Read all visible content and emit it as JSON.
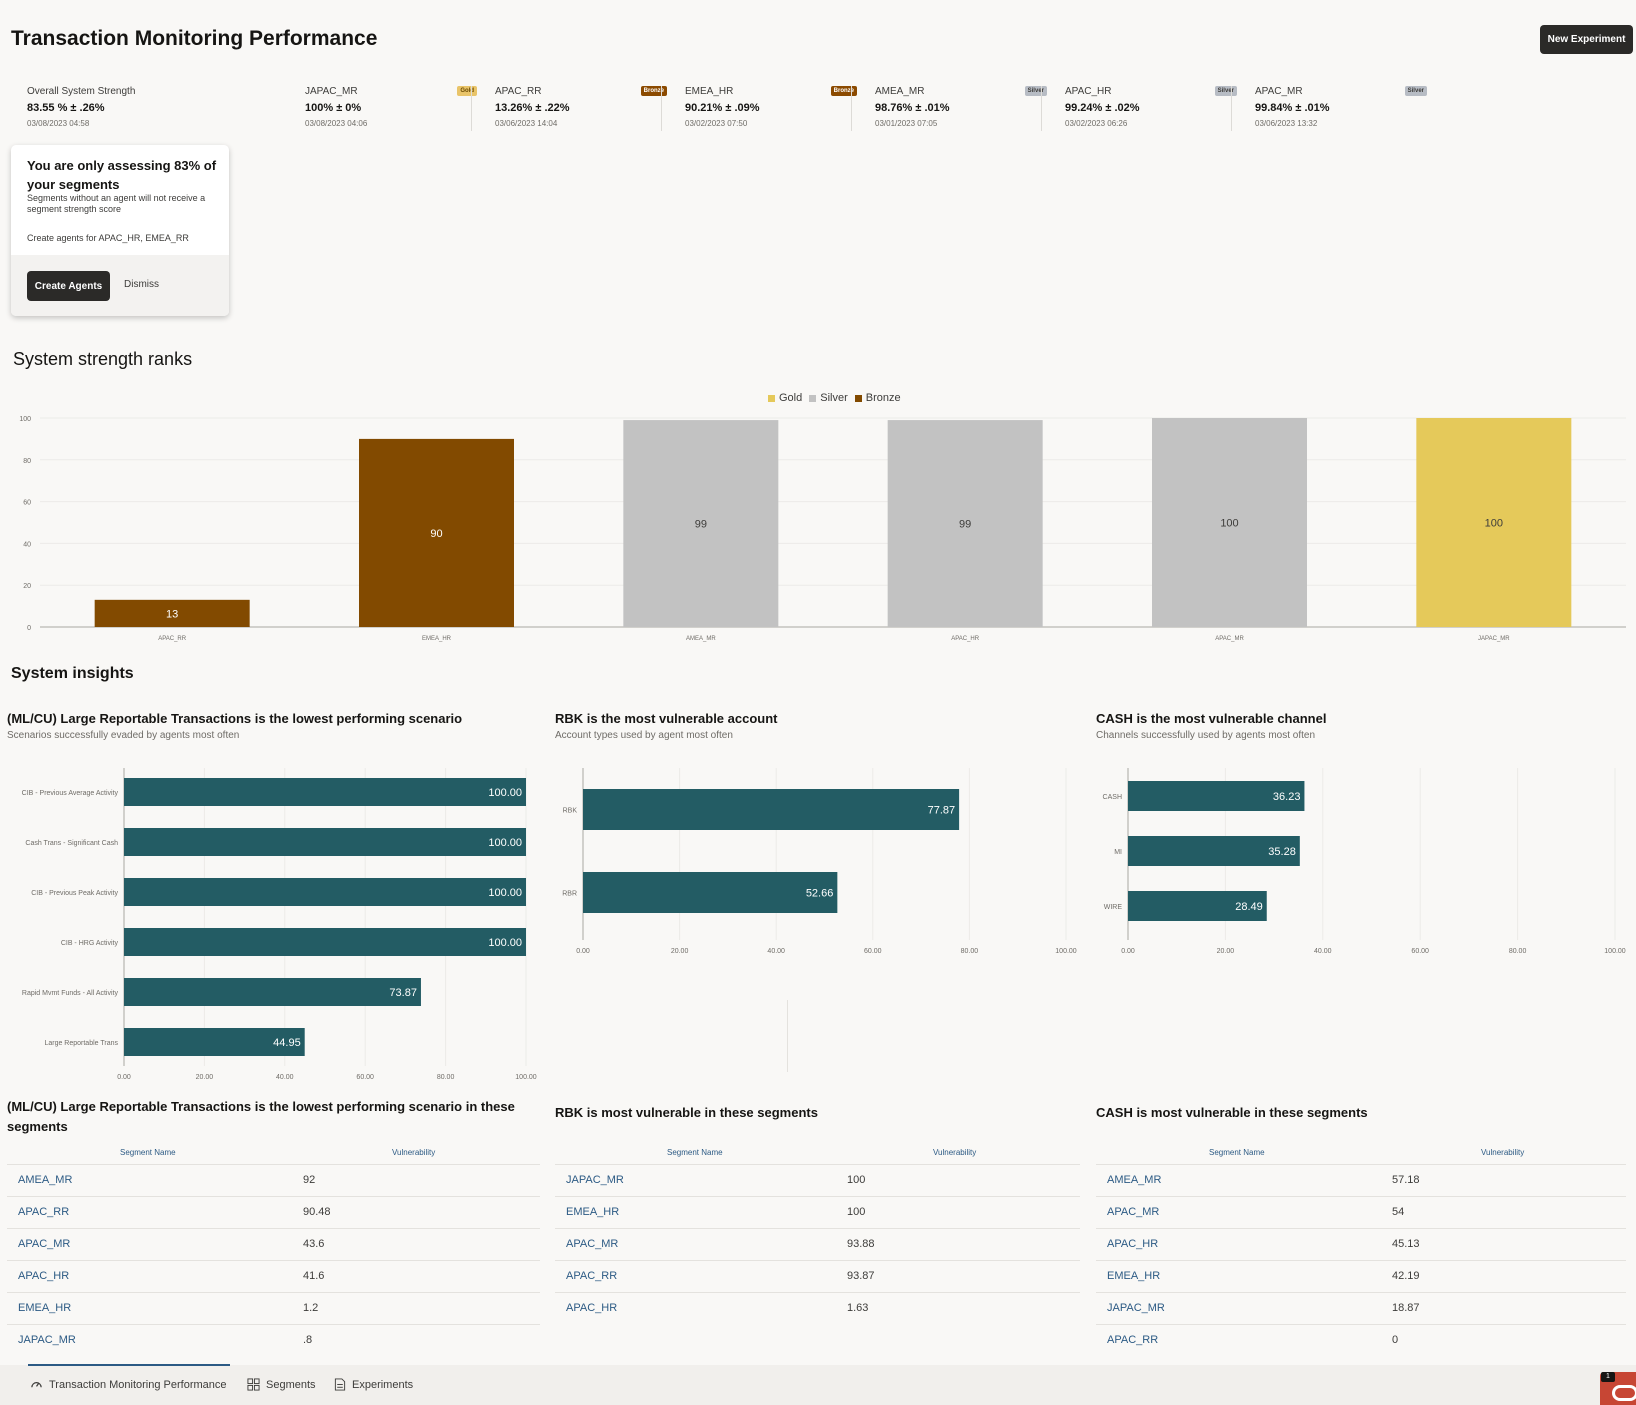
{
  "header": {
    "title": "Transaction Monitoring Performance",
    "new_experiment": "New Experiment"
  },
  "metrics": [
    {
      "name": "Overall System Strength",
      "value": "83.55 % ± .26%",
      "date": "03/08/2023 04:58",
      "badge": ""
    },
    {
      "name": "JAPAC_MR",
      "value": "100% ± 0%",
      "date": "03/08/2023 04:06",
      "badge": "Gold",
      "tier": "gold"
    },
    {
      "name": "APAC_RR",
      "value": "13.26% ± .22%",
      "date": "03/06/2023 14:04",
      "badge": "Bronze",
      "tier": "bronze"
    },
    {
      "name": "EMEA_HR",
      "value": "90.21% ± .09%",
      "date": "03/02/2023 07:50",
      "badge": "Bronze",
      "tier": "bronze"
    },
    {
      "name": "AMEA_MR",
      "value": "98.76% ± .01%",
      "date": "03/01/2023 07:05",
      "badge": "Silver",
      "tier": "silver"
    },
    {
      "name": "APAC_HR",
      "value": "99.24% ± .02%",
      "date": "03/02/2023 06:26",
      "badge": "Silver",
      "tier": "silver"
    },
    {
      "name": "APAC_MR",
      "value": "99.84% ± .01%",
      "date": "03/06/2023 13:32",
      "badge": "Silver",
      "tier": "silver"
    }
  ],
  "notice": {
    "title": "You are only assessing 83% of your segments",
    "description": "Segments without an agent will not receive a segment strength score",
    "cta_text": "Create agents for APAC_HR, EMEA_RR",
    "create_button": "Create Agents",
    "dismiss_button": "Dismiss"
  },
  "ranks": {
    "title": "System strength ranks",
    "legend": [
      {
        "label": "Gold",
        "color": "#e5c95a"
      },
      {
        "label": "Silver",
        "color": "#c2c2c2"
      },
      {
        "label": "Bronze",
        "color": "#824a00"
      }
    ],
    "y_ticks": [
      "100",
      "80",
      "60",
      "40",
      "20",
      "0"
    ]
  },
  "insights": {
    "title": "System insights",
    "panels": [
      {
        "title": "(ML/CU) Large Reportable Transactions is the lowest performing scenario",
        "subtitle": "Scenarios successfully evaded by agents most often"
      },
      {
        "title": "RBK is the most vulnerable account",
        "subtitle": "Account types used by agent most often"
      },
      {
        "title": "CASH is the most vulnerable channel",
        "subtitle": "Channels successfully used by agents most often"
      }
    ]
  },
  "chart_data": [
    {
      "type": "bar",
      "title": "System strength ranks",
      "categories": [
        "APAC_RR",
        "EMEA_HR",
        "AMEA_MR",
        "APAC_HR",
        "APAC_MR",
        "JAPAC_MR"
      ],
      "values": [
        13,
        90,
        99,
        99,
        100,
        100
      ],
      "tiers": [
        "Bronze",
        "Bronze",
        "Silver",
        "Silver",
        "Silver",
        "Gold"
      ],
      "ylim": [
        0,
        100
      ],
      "legend": [
        "Gold",
        "Silver",
        "Bronze"
      ]
    },
    {
      "type": "bar",
      "orientation": "horizontal",
      "title": "(ML/CU) Large Reportable Transactions is the lowest performing scenario",
      "categories": [
        "CIB - Previous Average Activity",
        "Cash Trans - Significant Cash",
        "CIB - Previous Peak Activity",
        "CIB - HRG Activity",
        "Rapid Mvmt Funds - All Activity",
        "Large Reportable Trans"
      ],
      "values": [
        100.0,
        100.0,
        100.0,
        100.0,
        73.87,
        44.95
      ],
      "labels": [
        "100.00",
        "100.00",
        "100.00",
        "100.00",
        "73.87",
        "44.95"
      ],
      "xticks": [
        "0.00",
        "20.00",
        "40.00",
        "60.00",
        "80.00",
        "100.00"
      ],
      "xlim": [
        0,
        100
      ]
    },
    {
      "type": "bar",
      "orientation": "horizontal",
      "title": "RBK is the most vulnerable account",
      "categories": [
        "RBK",
        "RBR"
      ],
      "values": [
        77.87,
        52.66
      ],
      "labels": [
        "77.87",
        "52.66"
      ],
      "xticks": [
        "0.00",
        "20.00",
        "40.00",
        "60.00",
        "80.00",
        "100.00"
      ],
      "xlim": [
        0,
        100
      ]
    },
    {
      "type": "bar",
      "orientation": "horizontal",
      "title": "CASH is the most vulnerable channel",
      "categories": [
        "CASH",
        "MI",
        "WIRE"
      ],
      "values": [
        36.23,
        35.28,
        28.49
      ],
      "labels": [
        "36.23",
        "35.28",
        "28.49"
      ],
      "xticks": [
        "0.00",
        "20.00",
        "40.00",
        "60.00",
        "80.00",
        "100.00"
      ],
      "xlim": [
        0,
        100
      ]
    }
  ],
  "tables": [
    {
      "title": "(ML/CU) Large Reportable Transactions is the lowest performing scenario in these segments",
      "headers": [
        "Segment Name",
        "Vulnerability"
      ],
      "rows": [
        [
          "AMEA_MR",
          "92"
        ],
        [
          "APAC_RR",
          "90.48"
        ],
        [
          "APAC_MR",
          "43.6"
        ],
        [
          "APAC_HR",
          "41.6"
        ],
        [
          "EMEA_HR",
          "1.2"
        ],
        [
          "JAPAC_MR",
          ".8"
        ]
      ]
    },
    {
      "title": "RBK is most vulnerable in these segments",
      "headers": [
        "Segment Name",
        "Vulnerability"
      ],
      "rows": [
        [
          "JAPAC_MR",
          "100"
        ],
        [
          "EMEA_HR",
          "100"
        ],
        [
          "APAC_MR",
          "93.88"
        ],
        [
          "APAC_RR",
          "93.87"
        ],
        [
          "APAC_HR",
          "1.63"
        ]
      ]
    },
    {
      "title": "CASH is most vulnerable in these segments",
      "headers": [
        "Segment Name",
        "Vulnerability"
      ],
      "rows": [
        [
          "AMEA_MR",
          "57.18"
        ],
        [
          "APAC_MR",
          "54"
        ],
        [
          "APAC_HR",
          "45.13"
        ],
        [
          "EMEA_HR",
          "42.19"
        ],
        [
          "JAPAC_MR",
          "18.87"
        ],
        [
          "APAC_RR",
          "0"
        ]
      ]
    }
  ],
  "nav": {
    "tabs": [
      {
        "label": "Transaction Monitoring Performance",
        "icon": "gauge-icon",
        "active": true
      },
      {
        "label": "Segments",
        "icon": "grid-icon",
        "active": false
      },
      {
        "label": "Experiments",
        "icon": "document-icon",
        "active": false
      }
    ],
    "notification_count": "1"
  },
  "colors": {
    "bar_teal": "#235c64",
    "gold": "#e5c95a",
    "silver": "#c2c2c2",
    "bronze": "#824a00",
    "link": "#2c5a84"
  }
}
